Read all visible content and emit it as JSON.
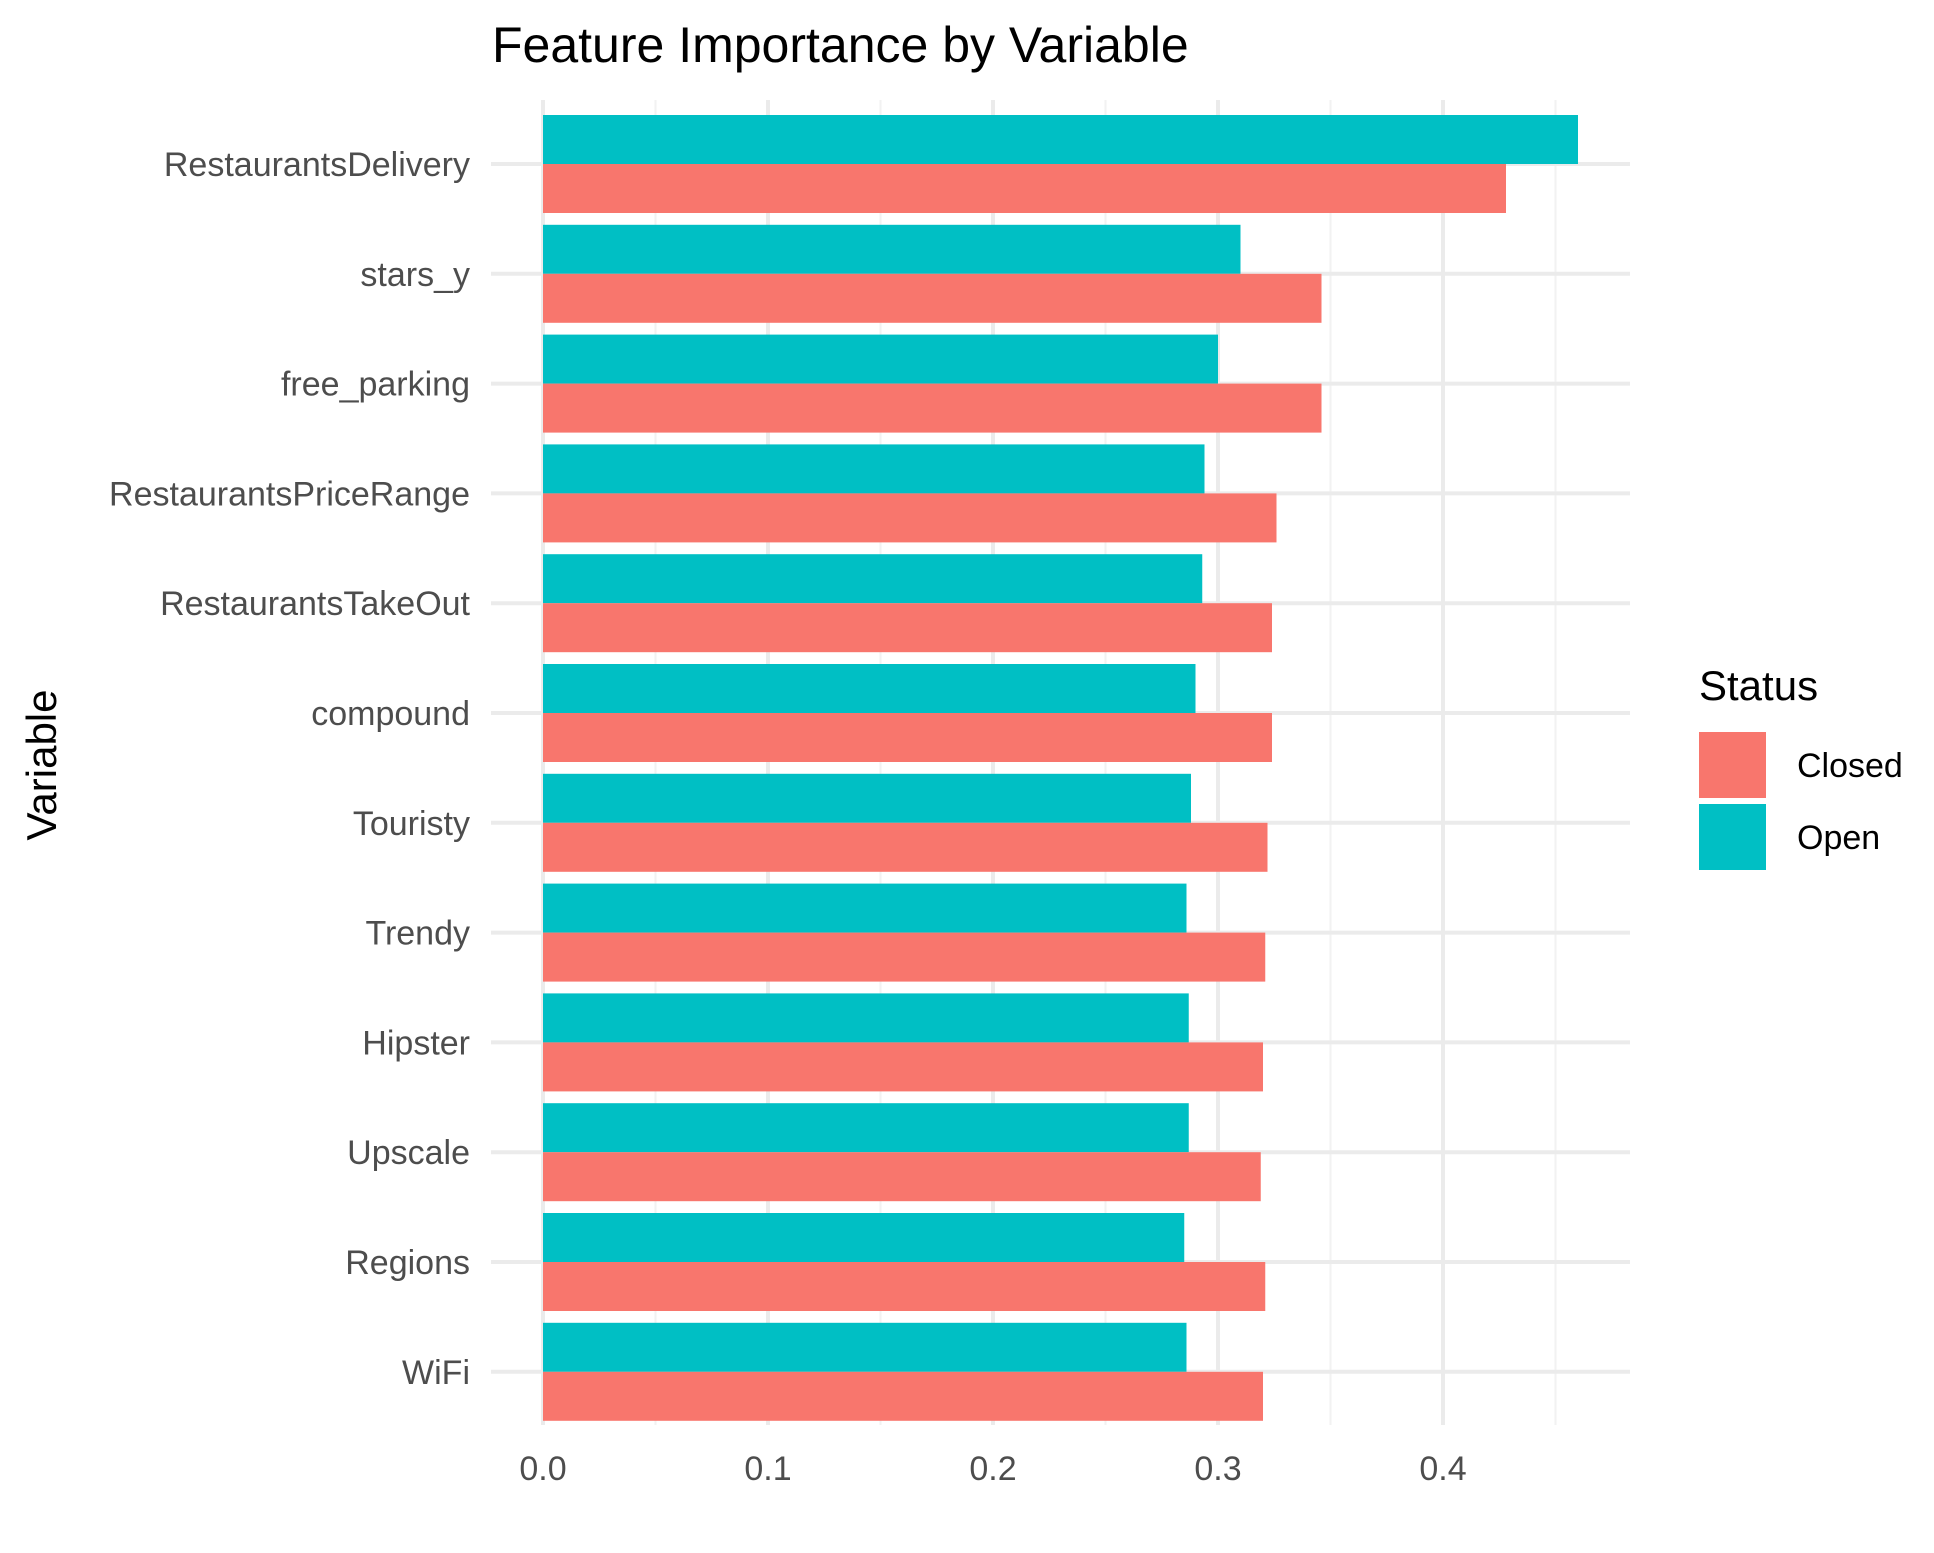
{
  "chart_data": {
    "type": "bar",
    "orientation": "horizontal",
    "title": "Feature Importance by Variable",
    "xlabel": "",
    "ylabel": "Variable",
    "xlim": [
      0,
      0.48
    ],
    "xticks": [
      0.0,
      0.1,
      0.2,
      0.3,
      0.4
    ],
    "xtick_labels": [
      "0.0",
      "0.1",
      "0.2",
      "0.3",
      "0.4"
    ],
    "grid": true,
    "legend": {
      "title": "Status",
      "placement": "right"
    },
    "categories": [
      "RestaurantsDelivery",
      "stars_y",
      "free_parking",
      "RestaurantsPriceRange",
      "RestaurantsTakeOut",
      "compound",
      "Touristy",
      "Trendy",
      "Hipster",
      "Upscale",
      "Regions",
      "WiFi"
    ],
    "series": [
      {
        "name": "Closed",
        "color": "#F8766D",
        "values": [
          0.428,
          0.346,
          0.346,
          0.326,
          0.324,
          0.324,
          0.322,
          0.321,
          0.32,
          0.319,
          0.321,
          0.32
        ]
      },
      {
        "name": "Open",
        "color": "#00BFC4",
        "values": [
          0.46,
          0.31,
          0.3,
          0.294,
          0.293,
          0.29,
          0.288,
          0.286,
          0.287,
          0.287,
          0.285,
          0.286
        ]
      }
    ]
  }
}
